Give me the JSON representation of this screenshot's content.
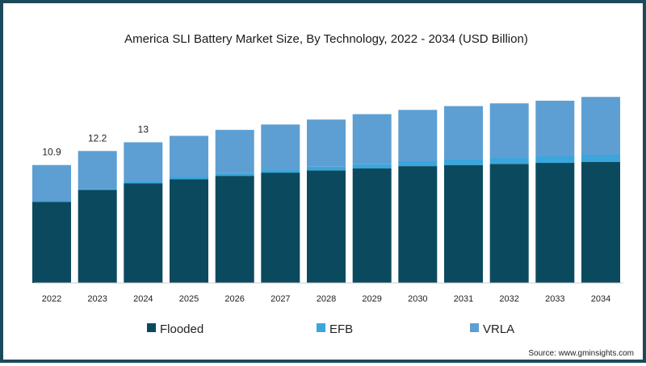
{
  "chart_data": {
    "type": "bar",
    "stacked": true,
    "title": "America SLI Battery Market Size, By Technology, 2022 - 2034 (USD Billion)",
    "xlabel": "",
    "ylabel": "",
    "categories": [
      "2022",
      "2023",
      "2024",
      "2025",
      "2026",
      "2027",
      "2028",
      "2029",
      "2030",
      "2031",
      "2032",
      "2033",
      "2034"
    ],
    "series": [
      {
        "name": "Flooded",
        "color": "#0b4a5e",
        "values": [
          7.5,
          8.6,
          9.2,
          9.6,
          9.9,
          10.2,
          10.4,
          10.6,
          10.8,
          10.9,
          11.0,
          11.1,
          11.2
        ]
      },
      {
        "name": "EFB",
        "color": "#3aa6dc",
        "values": [
          0.1,
          0.1,
          0.15,
          0.2,
          0.25,
          0.3,
          0.35,
          0.4,
          0.45,
          0.5,
          0.55,
          0.6,
          0.65
        ]
      },
      {
        "name": "VRLA",
        "color": "#5e9fd3",
        "values": [
          3.3,
          3.5,
          3.65,
          3.8,
          4.0,
          4.15,
          4.35,
          4.6,
          4.75,
          4.95,
          5.05,
          5.15,
          5.35
        ]
      }
    ],
    "data_labels": [
      {
        "category": "2022",
        "text": "10.9"
      },
      {
        "category": "2023",
        "text": "12.2"
      },
      {
        "category": "2024",
        "text": "13"
      }
    ],
    "ylim": [
      0,
      19
    ],
    "grid": false,
    "legend_position": "bottom"
  },
  "source": "Source: www.gminsights.com",
  "colors": {
    "border": "#1b4a5a",
    "flooded": "#0b4a5e",
    "efb": "#3aa6dc",
    "vrla": "#5e9fd3"
  }
}
